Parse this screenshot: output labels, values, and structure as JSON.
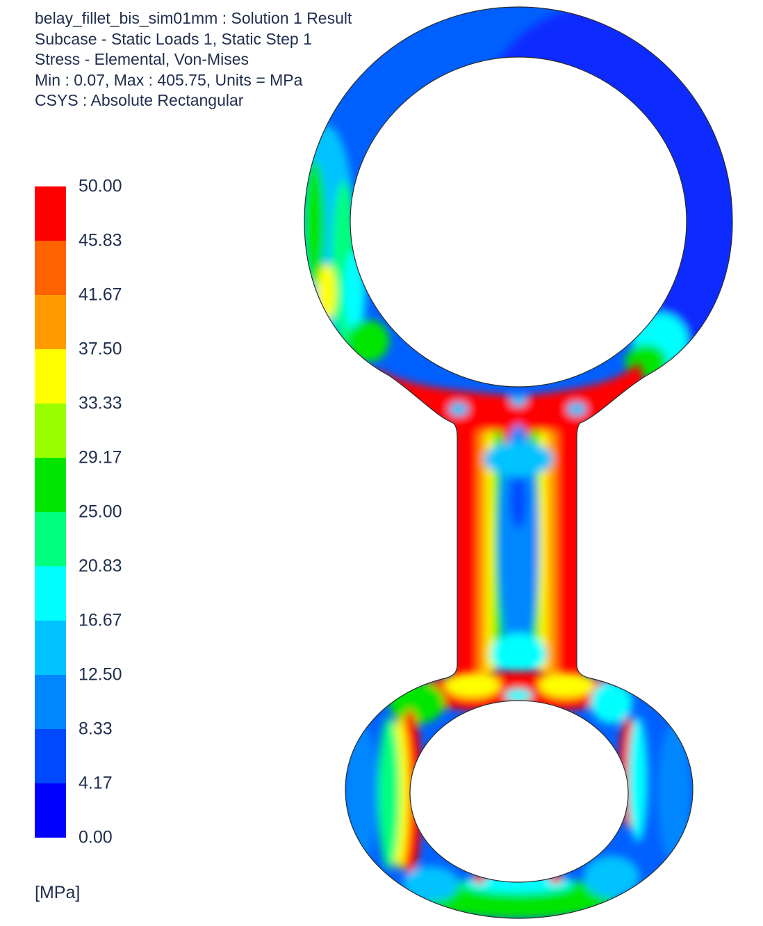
{
  "header": {
    "line1": "belay_fillet_bis_sim01mm : Solution 1 Result",
    "line2": "Subcase - Static Loads 1, Static Step 1",
    "line3": "Stress - Elemental, Von-Mises",
    "line4": "Min : 0.07, Max : 405.75, Units = MPa",
    "line5": "CSYS : Absolute Rectangular"
  },
  "legend": {
    "labels": [
      "50.00",
      "45.83",
      "41.67",
      "37.50",
      "33.33",
      "29.17",
      "25.00",
      "20.83",
      "16.67",
      "12.50",
      "8.33",
      "4.17",
      "0.00"
    ],
    "colors": [
      "#ff0000",
      "#ff6300",
      "#ff9b00",
      "#ffff00",
      "#99ff00",
      "#00e600",
      "#00ff7f",
      "#00ffff",
      "#00c3ff",
      "#0087ff",
      "#0049ff",
      "#0000ff"
    ],
    "units": "[MPa]"
  }
}
